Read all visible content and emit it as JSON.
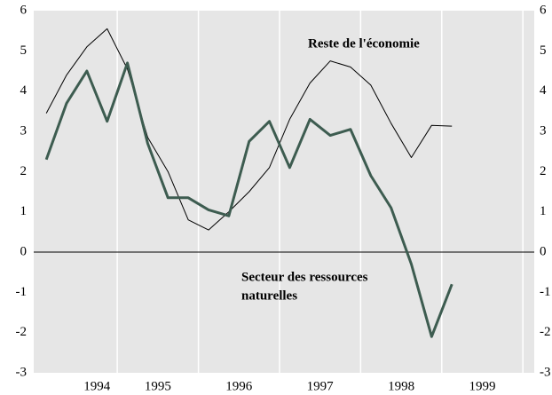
{
  "chart_data": {
    "type": "line",
    "annotations": [
      "Reste de l'économie",
      "Secteur des ressources",
      "naturelles"
    ],
    "x": [
      1994.125,
      1994.375,
      1994.625,
      1994.875,
      1995.125,
      1995.375,
      1995.625,
      1995.875,
      1996.125,
      1996.375,
      1996.625,
      1996.875,
      1997.125,
      1997.375,
      1997.625,
      1997.875,
      1998.125,
      1998.375,
      1998.625,
      1998.875,
      1999.125
    ],
    "series": [
      {
        "name": "Reste de l'économie",
        "color": "#000000",
        "width": 1,
        "values": [
          3.45,
          4.4,
          5.1,
          5.55,
          4.55,
          2.85,
          2.0,
          0.8,
          0.55,
          1.0,
          1.5,
          2.1,
          3.3,
          4.2,
          4.75,
          4.6,
          4.15,
          3.2,
          2.35,
          3.15,
          3.13
        ]
      },
      {
        "name": "Secteur des ressources naturelles",
        "color": "#3d5c50",
        "width": 3,
        "values": [
          2.3,
          3.7,
          4.5,
          3.25,
          4.7,
          2.7,
          1.35,
          1.35,
          1.05,
          0.9,
          2.75,
          3.25,
          2.1,
          3.3,
          2.9,
          3.05,
          1.9,
          1.1,
          -0.3,
          -2.1,
          -0.8
        ]
      }
    ],
    "xlim": [
      1993.97,
      2000.14
    ],
    "xticks": [
      {
        "value": 1994.75,
        "label": "1994"
      },
      {
        "value": 1995.5,
        "label": "1995"
      },
      {
        "value": 1996.5,
        "label": "1996"
      },
      {
        "value": 1997.5,
        "label": "1997"
      },
      {
        "value": 1998.5,
        "label": "1998"
      },
      {
        "value": 1999.5,
        "label": "1999"
      }
    ],
    "xgrid": [
      1995,
      1996,
      1997,
      1998,
      1999,
      2000
    ],
    "ylim": [
      -3,
      6
    ],
    "yticks": [
      -3,
      -2,
      -1,
      0,
      1,
      2,
      3,
      4,
      5,
      6
    ],
    "background": "#e6e6e6"
  }
}
